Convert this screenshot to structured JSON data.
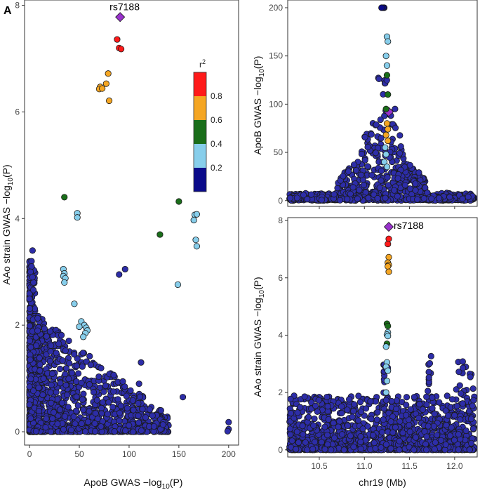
{
  "panel_label": "A",
  "legend": {
    "title": "r",
    "title_sup": "2",
    "bins": [
      {
        "label": "0.2",
        "color": "#0a0a8a"
      },
      {
        "label": "0.4",
        "color": "#87ceeb"
      },
      {
        "label": "0.6",
        "color": "#1a6e1a"
      },
      {
        "label": "0.8",
        "color": "#f5a623"
      },
      {
        "label": "",
        "color": "#ff1a1a"
      }
    ],
    "tick_labels": [
      "0.2",
      "0.4",
      "0.6",
      "0.8"
    ]
  },
  "colors": {
    "lead_snp": "#9932cc",
    "background_point": "#2d2da8",
    "point_edge": "#1a1a1a",
    "axis": "#333333"
  },
  "chart_data": [
    {
      "id": "scatter",
      "type": "scatter",
      "title": "",
      "xlabel": "ApoB GWAS −log",
      "xlabel_sub": "10",
      "xlabel_tail": "(P)",
      "ylabel": "AAo strain GWAS −log",
      "ylabel_sub": "10",
      "ylabel_tail": "(P)",
      "xlim": [
        -5,
        210
      ],
      "ylim": [
        -0.25,
        8.1
      ],
      "xticks": [
        0,
        50,
        100,
        150,
        200
      ],
      "yticks": [
        0,
        2,
        4,
        6,
        8
      ],
      "annotation": {
        "text": "rs7188",
        "x": 91,
        "y": 7.78
      },
      "series": [
        {
          "name": "lead",
          "r2_bin": "lead",
          "points": [
            [
              91,
              7.78
            ]
          ]
        },
        {
          "name": "r2 0.8-1.0",
          "r2_bin": 4,
          "points": [
            [
              88,
              7.36
            ],
            [
              90,
              7.2
            ],
            [
              92,
              7.18
            ]
          ]
        },
        {
          "name": "r2 0.6-0.8",
          "r2_bin": 3,
          "points": [
            [
              79,
              6.72
            ],
            [
              77,
              6.53
            ],
            [
              71,
              6.47
            ],
            [
              70,
              6.43
            ],
            [
              73,
              6.44
            ],
            [
              80,
              6.21
            ]
          ]
        },
        {
          "name": "r2 0.4-0.6",
          "r2_bin": 2,
          "points": [
            [
              35,
              4.4
            ],
            [
              150,
              4.32
            ],
            [
              131,
              3.7
            ]
          ]
        },
        {
          "name": "r2 0.2-0.4",
          "r2_bin": 1,
          "points": [
            [
              48,
              4.1
            ],
            [
              48,
              4.02
            ],
            [
              166,
              4.07
            ],
            [
              168,
              4.08
            ],
            [
              165,
              3.97
            ],
            [
              167,
              3.6
            ],
            [
              168,
              3.48
            ],
            [
              149,
              2.76
            ],
            [
              34,
              3.05
            ],
            [
              35,
              2.97
            ],
            [
              34,
              2.92
            ],
            [
              36,
              2.88
            ],
            [
              35,
              2.8
            ],
            [
              45,
              2.4
            ],
            [
              52,
              2.07
            ],
            [
              55,
              2.0
            ],
            [
              57,
              1.95
            ],
            [
              58,
              1.9
            ],
            [
              56,
              1.85
            ],
            [
              54,
              1.78
            ],
            [
              50,
              1.97
            ]
          ]
        }
      ]
    },
    {
      "id": "apob_locus",
      "type": "scatter",
      "title": "",
      "xlabel": "",
      "ylabel": "ApoB GWAS −log",
      "ylabel_sub": "10",
      "ylabel_tail": "(P)",
      "xlim": [
        10.15,
        12.25
      ],
      "ylim": [
        -6,
        208
      ],
      "xticks": [
        10.5,
        11.0,
        11.5,
        12.0
      ],
      "yticks": [
        0,
        50,
        100,
        150,
        200
      ],
      "series": [
        {
          "name": "lead",
          "r2_bin": "lead",
          "points": [
            [
              11.27,
              92
            ]
          ]
        },
        {
          "name": "r2 0.6-0.8",
          "r2_bin": 3,
          "points": [
            [
              11.25,
              80
            ],
            [
              11.26,
              74
            ],
            [
              11.24,
              68
            ],
            [
              11.26,
              62
            ]
          ]
        },
        {
          "name": "r2 0.4-0.6",
          "r2_bin": 2,
          "points": [
            [
              11.25,
              130
            ],
            [
              11.26,
              110
            ],
            [
              11.24,
              95
            ]
          ]
        },
        {
          "name": "r2 0.2-0.4",
          "r2_bin": 1,
          "points": [
            [
              11.25,
              170
            ],
            [
              11.26,
              165
            ],
            [
              11.24,
              150
            ],
            [
              11.25,
              140
            ],
            [
              11.23,
              55
            ],
            [
              11.24,
              48
            ],
            [
              11.22,
              40
            ],
            [
              11.25,
              35
            ]
          ]
        },
        {
          "name": "high tail",
          "r2_bin": 0,
          "points": [
            [
              11.2,
              200
            ],
            [
              11.22,
              200
            ],
            [
              11.21,
              200
            ],
            [
              11.19,
              200
            ]
          ]
        }
      ]
    },
    {
      "id": "aao_locus",
      "type": "scatter",
      "title": "",
      "xlabel": "chr19 (Mb)",
      "ylabel": "AAo strain GWAS −log",
      "ylabel_sub": "10",
      "ylabel_tail": "(P)",
      "xlim": [
        10.15,
        12.25
      ],
      "ylim": [
        -0.25,
        8.1
      ],
      "xticks": [
        10.5,
        11.0,
        11.5,
        12.0
      ],
      "xtick_labels": [
        "10.5",
        "11.0",
        "11.5",
        "12.0"
      ],
      "yticks": [
        0,
        2,
        4,
        6,
        8
      ],
      "annotation": {
        "text": "rs7188",
        "x": 11.27,
        "y": 7.78
      },
      "series": [
        {
          "name": "lead",
          "r2_bin": "lead",
          "points": [
            [
              11.27,
              7.78
            ]
          ]
        },
        {
          "name": "r2 0.8-1.0",
          "r2_bin": 4,
          "points": [
            [
              11.27,
              7.36
            ],
            [
              11.26,
              7.18
            ]
          ]
        },
        {
          "name": "r2 0.6-0.8",
          "r2_bin": 3,
          "points": [
            [
              11.27,
              6.72
            ],
            [
              11.26,
              6.53
            ],
            [
              11.27,
              6.45
            ],
            [
              11.26,
              6.4
            ],
            [
              11.27,
              6.21
            ]
          ]
        },
        {
          "name": "r2 0.4-0.6",
          "r2_bin": 2,
          "points": [
            [
              11.25,
              4.4
            ],
            [
              11.26,
              4.32
            ],
            [
              11.25,
              3.7
            ]
          ]
        },
        {
          "name": "r2 0.2-0.4",
          "r2_bin": 1,
          "points": [
            [
              11.26,
              4.1
            ],
            [
              11.25,
              4.02
            ],
            [
              11.26,
              3.97
            ],
            [
              11.24,
              3.6
            ],
            [
              11.25,
              3.05
            ],
            [
              11.24,
              2.9
            ],
            [
              11.26,
              2.76
            ],
            [
              11.25,
              2.4
            ],
            [
              11.24,
              2.0
            ]
          ]
        }
      ]
    }
  ]
}
